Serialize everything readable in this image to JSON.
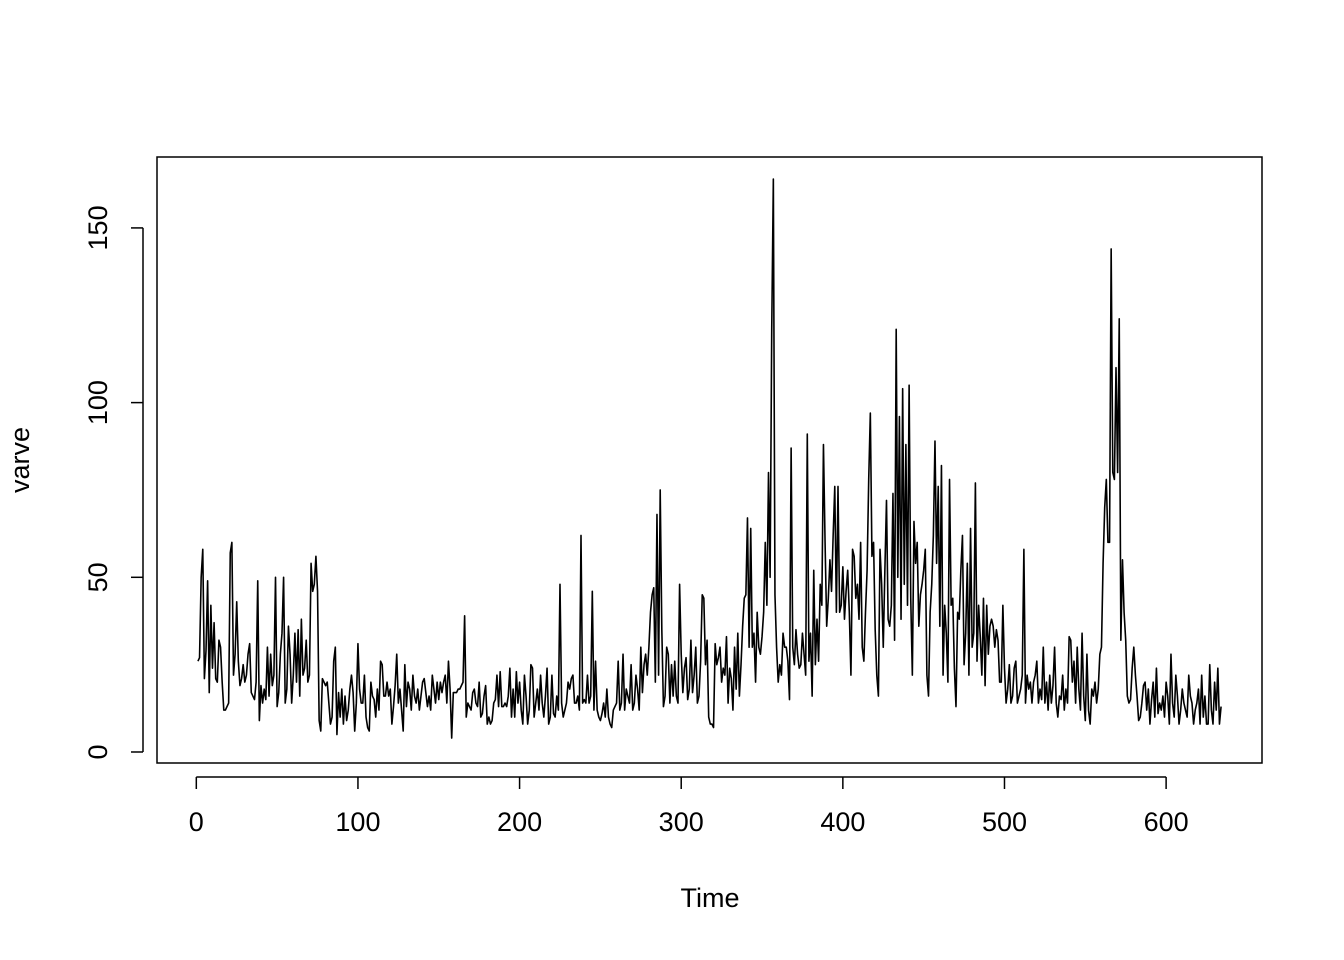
{
  "chart_data": {
    "type": "line",
    "x_label": "Time",
    "y_label": "varve",
    "color": "#000000",
    "xlim": [
      -24.32,
      659.32
    ],
    "ylim": [
      -3.15,
      170.3
    ],
    "xticks": [
      0,
      100,
      200,
      300,
      400,
      500,
      600
    ],
    "yticks": [
      0,
      50,
      100,
      150
    ],
    "x": [
      1,
      2,
      3,
      4,
      5,
      6,
      7,
      8,
      9,
      10,
      11,
      12,
      13,
      14,
      15,
      16,
      17,
      18,
      19,
      20,
      21,
      22,
      23,
      24,
      25,
      26,
      27,
      28,
      29,
      30,
      31,
      32,
      33,
      34,
      35,
      36,
      37,
      38,
      39,
      40,
      41,
      42,
      43,
      44,
      45,
      46,
      47,
      48,
      49,
      50,
      51,
      52,
      53,
      54,
      55,
      56,
      57,
      58,
      59,
      60,
      61,
      62,
      63,
      64,
      65,
      66,
      67,
      68,
      69,
      70,
      71,
      72,
      73,
      74,
      75,
      76,
      77,
      78,
      79,
      80,
      81,
      82,
      83,
      84,
      85,
      86,
      87,
      88,
      89,
      90,
      91,
      92,
      93,
      94,
      95,
      96,
      97,
      98,
      99,
      100,
      101,
      102,
      103,
      104,
      105,
      106,
      107,
      108,
      109,
      110,
      111,
      112,
      113,
      114,
      115,
      116,
      117,
      118,
      119,
      120,
      121,
      122,
      123,
      124,
      125,
      126,
      127,
      128,
      129,
      130,
      131,
      132,
      133,
      134,
      135,
      136,
      137,
      138,
      139,
      140,
      141,
      142,
      143,
      144,
      145,
      146,
      147,
      148,
      149,
      150,
      151,
      152,
      153,
      154,
      155,
      156,
      157,
      158,
      159,
      160,
      161,
      162,
      163,
      164,
      165,
      166,
      167,
      168,
      169,
      170,
      171,
      172,
      173,
      174,
      175,
      176,
      177,
      178,
      179,
      180,
      181,
      182,
      183,
      184,
      185,
      186,
      187,
      188,
      189,
      190,
      191,
      192,
      193,
      194,
      195,
      196,
      197,
      198,
      199,
      200,
      201,
      202,
      203,
      204,
      205,
      206,
      207,
      208,
      209,
      210,
      211,
      212,
      213,
      214,
      215,
      216,
      217,
      218,
      219,
      220,
      221,
      222,
      223,
      224,
      225,
      226,
      227,
      228,
      229,
      230,
      231,
      232,
      233,
      234,
      235,
      236,
      237,
      238,
      239,
      240,
      241,
      242,
      243,
      244,
      245,
      246,
      247,
      248,
      249,
      250,
      251,
      252,
      253,
      254,
      255,
      256,
      257,
      258,
      259,
      260,
      261,
      262,
      263,
      264,
      265,
      266,
      267,
      268,
      269,
      270,
      271,
      272,
      273,
      274,
      275,
      276,
      277,
      278,
      279,
      280,
      281,
      282,
      283,
      284,
      285,
      286,
      287,
      288,
      289,
      290,
      291,
      292,
      293,
      294,
      295,
      296,
      297,
      298,
      299,
      300,
      301,
      302,
      303,
      304,
      305,
      306,
      307,
      308,
      309,
      310,
      311,
      312,
      313,
      314,
      315,
      316,
      317,
      318,
      319,
      320,
      321,
      322,
      323,
      324,
      325,
      326,
      327,
      328,
      329,
      330,
      331,
      332,
      333,
      334,
      335,
      336,
      337,
      338,
      339,
      340,
      341,
      342,
      343,
      344,
      345,
      346,
      347,
      348,
      349,
      350,
      351,
      352,
      353,
      354,
      355,
      356,
      357,
      358,
      359,
      360,
      361,
      362,
      363,
      364,
      365,
      366,
      367,
      368,
      369,
      370,
      371,
      372,
      373,
      374,
      375,
      376,
      377,
      378,
      379,
      380,
      381,
      382,
      383,
      384,
      385,
      386,
      387,
      388,
      389,
      390,
      391,
      392,
      393,
      394,
      395,
      396,
      397,
      398,
      399,
      400,
      401,
      402,
      403,
      404,
      405,
      406,
      407,
      408,
      409,
      410,
      411,
      412,
      413,
      414,
      415,
      416,
      417,
      418,
      419,
      420,
      421,
      422,
      423,
      424,
      425,
      426,
      427,
      428,
      429,
      430,
      431,
      432,
      433,
      434,
      435,
      436,
      437,
      438,
      439,
      440,
      441,
      442,
      443,
      444,
      445,
      446,
      447,
      448,
      449,
      450,
      451,
      452,
      453,
      454,
      455,
      456,
      457,
      458,
      459,
      460,
      461,
      462,
      463,
      464,
      465,
      466,
      467,
      468,
      469,
      470,
      471,
      472,
      473,
      474,
      475,
      476,
      477,
      478,
      479,
      480,
      481,
      482,
      483,
      484,
      485,
      486,
      487,
      488,
      489,
      490,
      491,
      492,
      493,
      494,
      495,
      496,
      497,
      498,
      499,
      500,
      501,
      502,
      503,
      504,
      505,
      506,
      507,
      508,
      509,
      510,
      511,
      512,
      513,
      514,
      515,
      516,
      517,
      518,
      519,
      520,
      521,
      522,
      523,
      524,
      525,
      526,
      527,
      528,
      529,
      530,
      531,
      532,
      533,
      534,
      535,
      536,
      537,
      538,
      539,
      540,
      541,
      542,
      543,
      544,
      545,
      546,
      547,
      548,
      549,
      550,
      551,
      552,
      553,
      554,
      555,
      556,
      557,
      558,
      559,
      560,
      561,
      562,
      563,
      564,
      565,
      566,
      567,
      568,
      569,
      570,
      571,
      572,
      573,
      574,
      575,
      576,
      577,
      578,
      579,
      580,
      581,
      582,
      583,
      584,
      585,
      586,
      587,
      588,
      589,
      590,
      591,
      592,
      593,
      594,
      595,
      596,
      597,
      598,
      599,
      600,
      601,
      602,
      603,
      604,
      605,
      606,
      607,
      608,
      609,
      610,
      611,
      612,
      613,
      614,
      615,
      616,
      617,
      618,
      619,
      620,
      621,
      622,
      623,
      624,
      625,
      626,
      627,
      628,
      629,
      630,
      631,
      632,
      633,
      634
    ],
    "values": [
      26,
      27,
      50,
      58,
      21,
      29,
      49,
      17,
      42,
      24,
      37,
      21,
      20,
      32,
      30,
      20,
      12,
      12,
      13,
      14,
      57,
      60,
      22,
      28,
      43,
      26,
      19,
      21,
      25,
      20,
      22,
      28,
      31,
      17,
      16,
      15,
      20,
      49,
      9,
      19,
      14,
      18,
      15,
      30,
      16,
      28,
      19,
      22,
      50,
      13,
      17,
      28,
      34,
      50,
      14,
      18,
      36,
      28,
      14,
      22,
      34,
      20,
      35,
      16,
      38,
      22,
      24,
      32,
      20,
      22,
      54,
      46,
      48,
      56,
      46,
      9,
      6,
      21,
      20,
      19,
      20,
      14,
      8,
      10,
      26,
      30,
      5,
      17,
      10,
      18,
      8,
      16,
      9,
      12,
      18,
      22,
      17,
      6,
      14,
      31,
      18,
      14,
      14,
      22,
      10,
      7,
      6,
      20,
      16,
      15,
      10,
      18,
      12,
      26,
      25,
      16,
      16,
      20,
      16,
      18,
      8,
      13,
      19,
      28,
      14,
      18,
      12,
      6,
      25,
      13,
      20,
      18,
      12,
      22,
      16,
      14,
      18,
      12,
      16,
      20,
      21,
      17,
      13,
      16,
      12,
      22,
      18,
      14,
      20,
      15,
      20,
      17,
      20,
      22,
      14,
      26,
      18,
      4,
      17,
      17,
      17,
      18,
      18,
      19,
      20,
      39,
      10,
      14,
      13,
      12,
      17,
      18,
      14,
      13,
      20,
      10,
      11,
      16,
      19,
      8,
      10,
      8,
      9,
      14,
      15,
      22,
      13,
      23,
      13,
      13,
      14,
      13,
      16,
      24,
      10,
      18,
      10,
      23,
      14,
      20,
      12,
      8,
      22,
      16,
      8,
      12,
      25,
      24,
      10,
      14,
      18,
      12,
      22,
      14,
      10,
      16,
      24,
      8,
      10,
      22,
      11,
      10,
      16,
      12,
      48,
      14,
      10,
      12,
      14,
      20,
      18,
      21,
      22,
      14,
      14,
      16,
      12,
      62,
      14,
      15,
      14,
      22,
      14,
      16,
      46,
      12,
      26,
      12,
      10,
      9,
      11,
      14,
      10,
      18,
      10,
      8,
      7,
      12,
      13,
      14,
      26,
      12,
      14,
      28,
      12,
      18,
      16,
      14,
      25,
      12,
      14,
      22,
      18,
      12,
      30,
      17,
      25,
      28,
      22,
      30,
      40,
      45,
      47,
      20,
      68,
      22,
      75,
      35,
      13,
      16,
      30,
      28,
      14,
      25,
      16,
      26,
      16,
      14,
      48,
      28,
      17,
      24,
      27,
      15,
      18,
      32,
      17,
      22,
      30,
      14,
      16,
      26,
      45,
      44,
      25,
      32,
      10,
      8,
      8,
      7,
      31,
      25,
      27,
      30,
      20,
      24,
      22,
      33,
      14,
      24,
      21,
      12,
      30,
      18,
      34,
      16,
      25,
      36,
      44,
      45,
      67,
      30,
      64,
      30,
      34,
      20,
      40,
      30,
      28,
      33,
      40,
      60,
      42,
      80,
      50,
      121,
      164,
      45,
      30,
      20,
      25,
      22,
      34,
      30,
      30,
      26,
      15,
      87,
      30,
      25,
      35,
      28,
      24,
      25,
      34,
      28,
      22,
      91,
      26,
      34,
      16,
      52,
      25,
      38,
      26,
      48,
      42,
      88,
      60,
      36,
      44,
      55,
      46,
      62,
      76,
      40,
      76,
      40,
      42,
      53,
      38,
      46,
      52,
      40,
      22,
      58,
      56,
      44,
      48,
      38,
      60,
      30,
      26,
      40,
      52,
      78,
      97,
      56,
      60,
      35,
      22,
      16,
      58,
      48,
      30,
      52,
      72,
      38,
      36,
      42,
      74,
      32,
      121,
      50,
      96,
      38,
      104,
      48,
      88,
      42,
      105,
      44,
      22,
      66,
      54,
      60,
      36,
      45,
      48,
      52,
      58,
      22,
      16,
      40,
      48,
      62,
      89,
      54,
      76,
      36,
      82,
      22,
      42,
      34,
      20,
      78,
      42,
      44,
      24,
      13,
      40,
      38,
      52,
      62,
      25,
      34,
      54,
      22,
      64,
      30,
      34,
      77,
      26,
      42,
      33,
      22,
      44,
      19,
      42,
      28,
      36,
      38,
      36,
      30,
      35,
      32,
      20,
      20,
      42,
      24,
      14,
      18,
      25,
      14,
      16,
      24,
      26,
      14,
      16,
      18,
      22,
      58,
      14,
      22,
      18,
      20,
      14,
      20,
      22,
      26,
      14,
      18,
      15,
      30,
      14,
      20,
      12,
      22,
      14,
      19,
      30,
      14,
      10,
      16,
      15,
      22,
      12,
      18,
      14,
      33,
      32,
      20,
      26,
      14,
      30,
      18,
      12,
      34,
      16,
      9,
      28,
      12,
      8,
      18,
      16,
      20,
      14,
      18,
      28,
      30,
      54,
      70,
      78,
      60,
      60,
      144,
      80,
      78,
      110,
      80,
      124,
      32,
      55,
      40,
      32,
      16,
      14,
      15,
      24,
      30,
      22,
      16,
      9,
      10,
      14,
      19,
      20,
      12,
      18,
      8,
      15,
      20,
      10,
      24,
      11,
      14,
      12,
      16,
      10,
      20,
      16,
      8,
      28,
      14,
      10,
      22,
      16,
      8,
      12,
      18,
      14,
      12,
      10,
      22,
      16,
      14,
      8,
      12,
      14,
      18,
      8,
      22,
      10,
      16,
      8,
      8,
      25,
      12,
      8,
      20,
      12,
      24,
      8,
      13
    ]
  }
}
